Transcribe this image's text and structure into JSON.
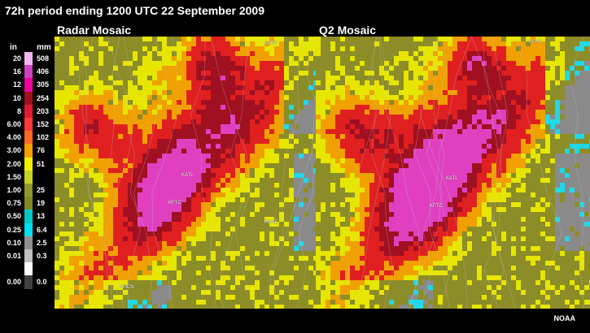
{
  "title": "72h period ending 1200 UTC 22 September 2009",
  "panels": [
    {
      "title": "Radar Mosaic",
      "sites": [
        "KFFC",
        "KATL",
        "KFTC",
        "KCAE",
        "KMCN"
      ]
    },
    {
      "title": "Q2 Mosaic",
      "sites": [
        "KFFC",
        "KATL",
        "KFTC"
      ]
    }
  ],
  "legend": {
    "unit_in": "in",
    "unit_mm": "mm",
    "rows": [
      {
        "in": "20",
        "mm": "508",
        "color": "#f0b4f0"
      },
      {
        "in": "16",
        "mm": "406",
        "color": "#d040c0"
      },
      {
        "in": "12",
        "mm": "305",
        "color": "#f000a0"
      },
      {
        "in": "10",
        "mm": "254",
        "color": "#a01020"
      },
      {
        "in": "8",
        "mm": "203",
        "color": "#e01830"
      },
      {
        "in": "6.00",
        "mm": "152",
        "color": "#ff3838"
      },
      {
        "in": "4.00",
        "mm": "102",
        "color": "#ff6820"
      },
      {
        "in": "3.00",
        "mm": "76",
        "color": "#f8a000"
      },
      {
        "in": "2.00",
        "mm": "51",
        "color": "#f0f000"
      },
      {
        "in": "1.50",
        "mm": "",
        "color": "#c8d020"
      },
      {
        "in": "1.00",
        "mm": "25",
        "color": "#909828"
      },
      {
        "in": "0.75",
        "mm": "19",
        "color": "#808820"
      },
      {
        "in": "0.50",
        "mm": "13",
        "color": "#00c8c8"
      },
      {
        "in": "0.25",
        "mm": "6.4",
        "color": "#00e0f0"
      },
      {
        "in": "0.10",
        "mm": "2.5",
        "color": "#909090"
      },
      {
        "in": "0.01",
        "mm": "0.3",
        "color": "#c0c0c0"
      },
      {
        "in": "",
        "mm": "",
        "color": "#ffffff"
      },
      {
        "in": "0.00",
        "mm": "0.0",
        "color": "#404040"
      }
    ]
  },
  "credit": "NOAA",
  "colors": {
    "olive": "#8c8c28",
    "yellow": "#e6e600",
    "orange": "#f0a000",
    "red": "#e02020",
    "darkred": "#a01020",
    "magenta": "#e040c0",
    "cyan": "#20d8e8",
    "gray": "#8a8a8a"
  }
}
